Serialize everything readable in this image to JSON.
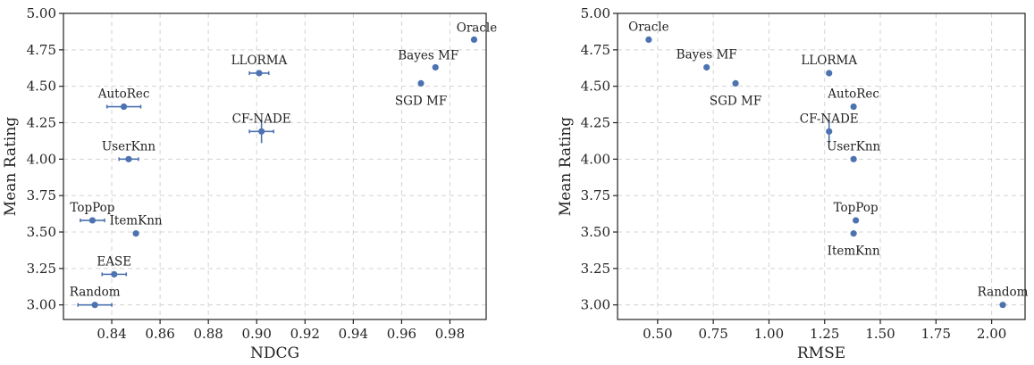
{
  "colors": {
    "marker": "#4c72b0",
    "axis": "#222222",
    "grid": "#d4d4d4"
  },
  "chart_data": [
    {
      "type": "scatter",
      "xlabel": "NDCG",
      "ylabel": "Mean Rating",
      "xlim": [
        0.82,
        0.995
      ],
      "ylim": [
        2.9,
        5.0
      ],
      "xticks": [
        0.84,
        0.86,
        0.88,
        0.9,
        0.92,
        0.94,
        0.96,
        0.98
      ],
      "xtick_labels": [
        "0.84",
        "0.86",
        "0.88",
        "0.90",
        "0.92",
        "0.94",
        "0.96",
        "0.98"
      ],
      "yticks": [
        3.0,
        3.25,
        3.5,
        3.75,
        4.0,
        4.25,
        4.5,
        4.75,
        5.0
      ],
      "ytick_labels": [
        "3.00",
        "3.25",
        "3.50",
        "3.75",
        "4.00",
        "4.25",
        "4.50",
        "4.75",
        "5.00"
      ],
      "grid": true,
      "points": [
        {
          "label": "Oracle",
          "x": 0.99,
          "y": 4.82,
          "xerr": 0.0,
          "yerr": 0.0,
          "label_pos": "above"
        },
        {
          "label": "Bayes MF",
          "x": 0.974,
          "y": 4.63,
          "xerr": 0.0,
          "yerr": 0.0,
          "label_pos": "above-left"
        },
        {
          "label": "SGD MF",
          "x": 0.968,
          "y": 4.52,
          "xerr": 0.0,
          "yerr": 0.0,
          "label_pos": "below"
        },
        {
          "label": "LLORMA",
          "x": 0.901,
          "y": 4.59,
          "xerr": 0.004,
          "yerr": 0.0,
          "label_pos": "above"
        },
        {
          "label": "AutoRec",
          "x": 0.845,
          "y": 4.36,
          "xerr": 0.007,
          "yerr": 0.0,
          "label_pos": "above"
        },
        {
          "label": "CF-NADE",
          "x": 0.902,
          "y": 4.19,
          "xerr": 0.005,
          "yerr": 0.08,
          "label_pos": "above"
        },
        {
          "label": "UserKnn",
          "x": 0.847,
          "y": 4.0,
          "xerr": 0.004,
          "yerr": 0.0,
          "label_pos": "above"
        },
        {
          "label": "TopPop",
          "x": 0.832,
          "y": 3.58,
          "xerr": 0.005,
          "yerr": 0.0,
          "label_pos": "above"
        },
        {
          "label": "ItemKnn",
          "x": 0.85,
          "y": 3.49,
          "xerr": 0.0,
          "yerr": 0.0,
          "label_pos": "above"
        },
        {
          "label": "EASE",
          "x": 0.841,
          "y": 3.21,
          "xerr": 0.005,
          "yerr": 0.0,
          "label_pos": "above"
        },
        {
          "label": "Random",
          "x": 0.833,
          "y": 3.0,
          "xerr": 0.007,
          "yerr": 0.0,
          "label_pos": "above"
        }
      ]
    },
    {
      "type": "scatter",
      "xlabel": "RMSE",
      "ylabel": "Mean Rating",
      "xlim": [
        0.32,
        2.15
      ],
      "ylim": [
        2.9,
        5.0
      ],
      "xticks": [
        0.5,
        0.75,
        1.0,
        1.25,
        1.5,
        1.75,
        2.0
      ],
      "xtick_labels": [
        "0.50",
        "0.75",
        "1.00",
        "1.25",
        "1.50",
        "1.75",
        "2.00"
      ],
      "yticks": [
        3.0,
        3.25,
        3.5,
        3.75,
        4.0,
        4.25,
        4.5,
        4.75,
        5.0
      ],
      "ytick_labels": [
        "3.00",
        "3.25",
        "3.50",
        "3.75",
        "4.00",
        "4.25",
        "4.50",
        "4.75",
        "5.00"
      ],
      "grid": true,
      "points": [
        {
          "label": "Oracle",
          "x": 0.46,
          "y": 4.82,
          "xerr": 0.0,
          "yerr": 0.0,
          "label_pos": "above"
        },
        {
          "label": "Bayes MF",
          "x": 0.72,
          "y": 4.63,
          "xerr": 0.0,
          "yerr": 0.0,
          "label_pos": "above"
        },
        {
          "label": "SGD MF",
          "x": 0.85,
          "y": 4.52,
          "xerr": 0.0,
          "yerr": 0.0,
          "label_pos": "below"
        },
        {
          "label": "LLORMA",
          "x": 1.27,
          "y": 4.59,
          "xerr": 0.0,
          "yerr": 0.0,
          "label_pos": "above"
        },
        {
          "label": "AutoRec",
          "x": 1.38,
          "y": 4.36,
          "xerr": 0.0,
          "yerr": 0.0,
          "label_pos": "above"
        },
        {
          "label": "CF-NADE",
          "x": 1.27,
          "y": 4.19,
          "xerr": 0.0,
          "yerr": 0.08,
          "label_pos": "above"
        },
        {
          "label": "UserKnn",
          "x": 1.38,
          "y": 4.0,
          "xerr": 0.0,
          "yerr": 0.0,
          "label_pos": "above"
        },
        {
          "label": "TopPop",
          "x": 1.39,
          "y": 3.58,
          "xerr": 0.0,
          "yerr": 0.0,
          "label_pos": "above"
        },
        {
          "label": "ItemKnn",
          "x": 1.38,
          "y": 3.49,
          "xerr": 0.0,
          "yerr": 0.0,
          "label_pos": "below"
        },
        {
          "label": "Random",
          "x": 2.05,
          "y": 3.0,
          "xerr": 0.0,
          "yerr": 0.0,
          "label_pos": "above"
        }
      ]
    }
  ]
}
